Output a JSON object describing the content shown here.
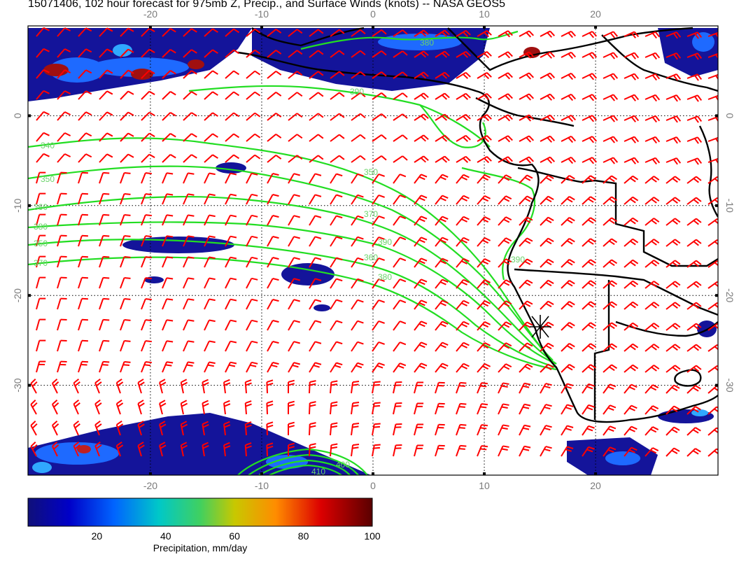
{
  "title": "15071406, 102 hour forecast for 975mb Z, Precip., and Surface Winds (knots) -- NASA GEOS5",
  "map": {
    "lon_ticks": [
      -20,
      -10,
      0,
      10,
      20
    ],
    "lat_ticks": [
      0,
      -10,
      -20,
      -30
    ],
    "lon_range": [
      -31,
      31
    ],
    "lat_range": [
      -40,
      10
    ],
    "contour_labels": [
      "340",
      "350",
      "350",
      "360",
      "370",
      "380",
      "390",
      "350",
      "360",
      "370",
      "380",
      "390",
      "380",
      "390",
      "400",
      "410"
    ],
    "colors": {
      "wind_barbs": "#ff0000",
      "contours": "#22dd22",
      "coastline": "#000000",
      "precip_low": "#00008b",
      "precip_high": "#7a0000"
    },
    "marker": "asterisk"
  },
  "colorbar": {
    "label": "Precipitation, mm/day",
    "ticks": [
      20,
      40,
      60,
      80,
      100
    ],
    "range": [
      0,
      100
    ]
  }
}
